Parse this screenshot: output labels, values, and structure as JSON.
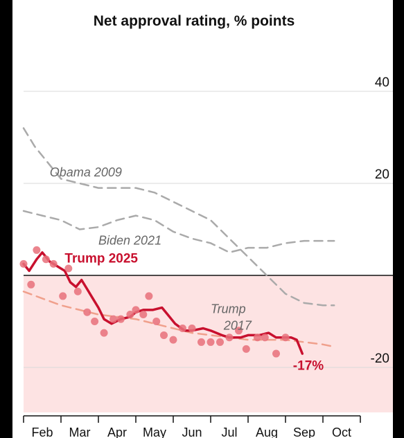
{
  "chart_data": {
    "type": "line",
    "title": "Net approval rating, % points",
    "xlabel": "",
    "ylabel": "",
    "ylim": [
      -30,
      48
    ],
    "yticks": [
      {
        "value": 40,
        "label": "40"
      },
      {
        "value": 20,
        "label": "20"
      },
      {
        "value": 0,
        "label": ""
      },
      {
        "value": -20,
        "label": "-20"
      }
    ],
    "months": [
      "Feb",
      "Mar",
      "Apr",
      "May",
      "Jun",
      "Jul",
      "Aug",
      "Sep",
      "Oct"
    ],
    "negative_region": {
      "from": -30,
      "to": 0,
      "color": "#fde3e3"
    },
    "series": [
      {
        "name": "Obama 2009",
        "style": "dashed",
        "color": "#aaaaaa",
        "points": [
          [
            0.0,
            32
          ],
          [
            0.3,
            28
          ],
          [
            0.6,
            25
          ],
          [
            1.0,
            21
          ],
          [
            1.5,
            20
          ],
          [
            2.0,
            19
          ],
          [
            2.5,
            19
          ],
          [
            3.0,
            19
          ],
          [
            3.5,
            18
          ],
          [
            4.0,
            16
          ],
          [
            4.5,
            14
          ],
          [
            5.0,
            12
          ],
          [
            5.5,
            8
          ],
          [
            6.0,
            4
          ],
          [
            6.5,
            0
          ],
          [
            7.0,
            -4
          ],
          [
            7.5,
            -6
          ],
          [
            8.0,
            -6.5
          ],
          [
            8.3,
            -6.5
          ]
        ]
      },
      {
        "name": "Biden 2021",
        "style": "dashed",
        "color": "#aaaaaa",
        "points": [
          [
            0.0,
            14
          ],
          [
            0.5,
            13
          ],
          [
            1.0,
            12
          ],
          [
            1.5,
            10
          ],
          [
            2.0,
            10.5
          ],
          [
            2.5,
            12
          ],
          [
            3.0,
            13
          ],
          [
            3.5,
            12
          ],
          [
            4.0,
            9.5
          ],
          [
            4.5,
            8
          ],
          [
            5.0,
            7
          ],
          [
            5.5,
            5
          ],
          [
            6.0,
            6
          ],
          [
            6.5,
            6
          ],
          [
            7.0,
            7
          ],
          [
            7.5,
            7.5
          ],
          [
            8.0,
            7.5
          ],
          [
            8.3,
            7.5
          ]
        ]
      },
      {
        "name": "Trump 2017",
        "style": "dashed",
        "color": "#f0a08c",
        "points": [
          [
            0.0,
            -3.5
          ],
          [
            0.5,
            -5
          ],
          [
            1.0,
            -6.5
          ],
          [
            1.5,
            -7.5
          ],
          [
            2.0,
            -8.5
          ],
          [
            2.5,
            -9
          ],
          [
            3.0,
            -9.5
          ],
          [
            3.5,
            -10.5
          ],
          [
            4.0,
            -11.5
          ],
          [
            4.5,
            -12.5
          ],
          [
            5.0,
            -13
          ],
          [
            5.5,
            -13.5
          ],
          [
            6.0,
            -14
          ],
          [
            6.5,
            -14
          ],
          [
            7.0,
            -14
          ],
          [
            7.5,
            -14.5
          ],
          [
            8.0,
            -15
          ],
          [
            8.3,
            -15.5
          ]
        ]
      },
      {
        "name": "Trump 2025",
        "style": "solid",
        "color": "#c8102e",
        "points": [
          [
            0.0,
            2.5
          ],
          [
            0.15,
            1
          ],
          [
            0.35,
            3.5
          ],
          [
            0.5,
            5
          ],
          [
            0.7,
            3
          ],
          [
            0.9,
            2
          ],
          [
            1.1,
            1
          ],
          [
            1.25,
            -1.5
          ],
          [
            1.4,
            -2.5
          ],
          [
            1.55,
            -1
          ],
          [
            1.7,
            -3
          ],
          [
            1.85,
            -5
          ],
          [
            2.0,
            -7
          ],
          [
            2.15,
            -9.5
          ],
          [
            2.35,
            -10.5
          ],
          [
            2.6,
            -9.5
          ],
          [
            2.85,
            -9
          ],
          [
            3.0,
            -8
          ],
          [
            3.2,
            -7.5
          ],
          [
            3.45,
            -7.5
          ],
          [
            3.7,
            -7
          ],
          [
            3.85,
            -8.5
          ],
          [
            4.05,
            -10.5
          ],
          [
            4.3,
            -12
          ],
          [
            4.5,
            -12
          ],
          [
            4.8,
            -11.5
          ],
          [
            5.0,
            -12
          ],
          [
            5.3,
            -13
          ],
          [
            5.5,
            -13.5
          ],
          [
            5.8,
            -13.5
          ],
          [
            6.0,
            -13
          ],
          [
            6.3,
            -13
          ],
          [
            6.55,
            -12.5
          ],
          [
            6.75,
            -13.5
          ],
          [
            6.95,
            -13.5
          ],
          [
            7.15,
            -13.5
          ],
          [
            7.3,
            -14
          ],
          [
            7.45,
            -17
          ]
        ]
      }
    ],
    "trump2025_dots": [
      [
        0.0,
        2.5
      ],
      [
        0.2,
        -2
      ],
      [
        0.35,
        5.5
      ],
      [
        0.6,
        3.5
      ],
      [
        0.8,
        2.5
      ],
      [
        1.05,
        -4.5
      ],
      [
        1.2,
        1.5
      ],
      [
        1.45,
        -3.5
      ],
      [
        1.7,
        -8
      ],
      [
        1.9,
        -10
      ],
      [
        2.15,
        -12.5
      ],
      [
        2.4,
        -9.5
      ],
      [
        2.6,
        -9.5
      ],
      [
        2.85,
        -8.5
      ],
      [
        3.0,
        -7.5
      ],
      [
        3.2,
        -8.5
      ],
      [
        3.35,
        -4.5
      ],
      [
        3.55,
        -10
      ],
      [
        3.75,
        -13
      ],
      [
        4.0,
        -14
      ],
      [
        4.25,
        -11.5
      ],
      [
        4.5,
        -11.5
      ],
      [
        4.75,
        -14.5
      ],
      [
        5.0,
        -14.5
      ],
      [
        5.25,
        -14.5
      ],
      [
        5.5,
        -13.5
      ],
      [
        5.75,
        -12
      ],
      [
        5.95,
        -16
      ],
      [
        6.25,
        -13.5
      ],
      [
        6.45,
        -13.5
      ],
      [
        6.75,
        -17
      ],
      [
        7.0,
        -13.5
      ]
    ],
    "annotations": [
      {
        "text": "Obama 2009",
        "at": [
          0.7,
          21.5
        ],
        "color": "#666666"
      },
      {
        "text": "Biden 2021",
        "at": [
          2.0,
          6.7
        ],
        "color": "#666666"
      },
      {
        "text": "Trump 2025",
        "at": [
          1.1,
          2.8
        ],
        "color": "#c8102e"
      },
      {
        "text": "Trump",
        "at": [
          5.0,
          -8.2
        ],
        "color": "#666666"
      },
      {
        "text": "2017",
        "at": [
          5.35,
          -11.8
        ],
        "color": "#666666"
      },
      {
        "text": "-17%",
        "at": [
          7.2,
          -20.5
        ],
        "color": "#c8102e"
      }
    ]
  }
}
